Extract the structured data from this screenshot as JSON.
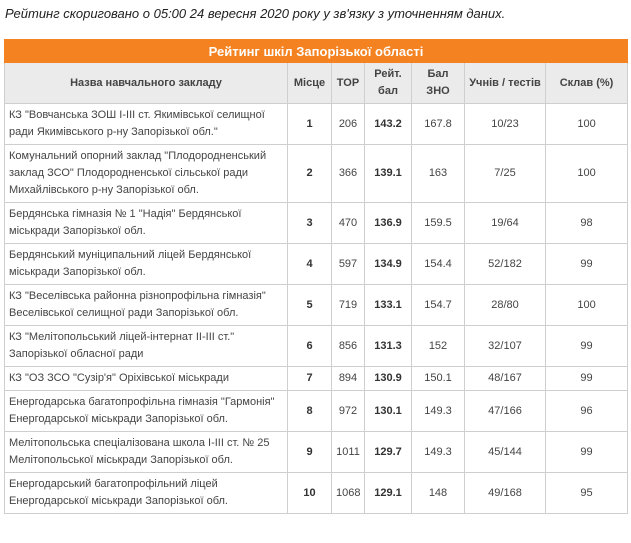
{
  "note": "Рейтинг скориговано о 05:00 24 вересня 2020 року у зв'язку з уточненням даних.",
  "table": {
    "caption": "Рейтинг шкіл Запорізької області",
    "headers": {
      "name": "Назва навчального закладу",
      "place": "Місце",
      "top": "TOP",
      "score": "Рейт. бал",
      "zno": "Бал ЗНО",
      "students": "Учнів / тестів",
      "passed": "Склав (%)"
    },
    "rows": [
      {
        "name": "КЗ \"Вовчанська ЗОШ І-ІІІ ст. Якимівської селищної ради Якимівського р-ну Запорізької обл.\"",
        "place": "1",
        "top": "206",
        "score": "143.2",
        "zno": "167.8",
        "students": "10/23",
        "passed": "100"
      },
      {
        "name": "Комунальний опорний заклад \"Плодородненський заклад ЗСО\" Плодородненської сільської ради Михайлівського р-ну Запорізької обл.",
        "place": "2",
        "top": "366",
        "score": "139.1",
        "zno": "163",
        "students": "7/25",
        "passed": "100"
      },
      {
        "name": "Бердянська гімназія № 1 \"Надія\" Бердянської міськради Запорізької обл.",
        "place": "3",
        "top": "470",
        "score": "136.9",
        "zno": "159.5",
        "students": "19/64",
        "passed": "98"
      },
      {
        "name": "Бердянський муніципальний ліцей Бердянської міськради Запорізької обл.",
        "place": "4",
        "top": "597",
        "score": "134.9",
        "zno": "154.4",
        "students": "52/182",
        "passed": "99"
      },
      {
        "name": "КЗ \"Веселівська районна різнопрофільна гімназія\" Веселівської селищної ради Запорізької обл.",
        "place": "5",
        "top": "719",
        "score": "133.1",
        "zno": "154.7",
        "students": "28/80",
        "passed": "100"
      },
      {
        "name": "КЗ \"Мелітопольський ліцей-інтернат ІІ-ІІІ ст.\" Запорізької обласної ради",
        "place": "6",
        "top": "856",
        "score": "131.3",
        "zno": "152",
        "students": "32/107",
        "passed": "99"
      },
      {
        "name": "КЗ \"ОЗ ЗСО \"Сузір'я\" Оріхівської міськради",
        "place": "7",
        "top": "894",
        "score": "130.9",
        "zno": "150.1",
        "students": "48/167",
        "passed": "99"
      },
      {
        "name": "Енергодарська багатопрофільна гімназія \"Гармонія\" Енергодарської міськради Запорізької обл.",
        "place": "8",
        "top": "972",
        "score": "130.1",
        "zno": "149.3",
        "students": "47/166",
        "passed": "96"
      },
      {
        "name": "Мелітопольська спеціалізована школа І-ІІІ ст. № 25 Мелітопольської міськради Запорізької обл.",
        "place": "9",
        "top": "1011",
        "score": "129.7",
        "zno": "149.3",
        "students": "45/144",
        "passed": "99"
      },
      {
        "name": "Енергодарський багатопрофільний ліцей Енергодарської міськради Запорізької обл.",
        "place": "10",
        "top": "1068",
        "score": "129.1",
        "zno": "148",
        "students": "49/168",
        "passed": "95"
      }
    ]
  },
  "colors": {
    "caption_bg": "#f58220",
    "header_bg": "#ebebeb",
    "border": "#cfcfcf"
  }
}
